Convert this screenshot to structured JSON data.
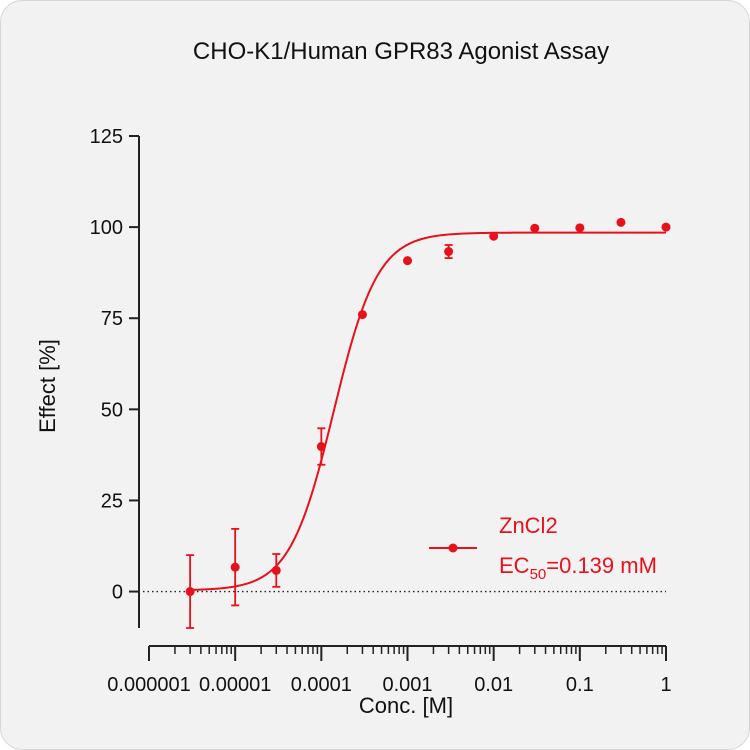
{
  "chart_data": {
    "type": "scatter",
    "title": "CHO-K1/Human GPR83 Agonist Assay",
    "xlabel": "Conc. [M]",
    "ylabel": "Effect  [%]",
    "x_scale": "log",
    "xlim": [
      1e-06,
      1
    ],
    "ylim": [
      -10,
      125
    ],
    "x_ticks": [
      {
        "value": 1e-06,
        "label": "0.000001"
      },
      {
        "value": 1e-05,
        "label": "0.00001"
      },
      {
        "value": 0.0001,
        "label": "0.0001"
      },
      {
        "value": 0.001,
        "label": "0.001"
      },
      {
        "value": 0.01,
        "label": "0.01"
      },
      {
        "value": 0.1,
        "label": "0.1"
      },
      {
        "value": 1,
        "label": "1"
      }
    ],
    "y_ticks": [
      {
        "value": 0,
        "label": "0"
      },
      {
        "value": 25,
        "label": "25"
      },
      {
        "value": 50,
        "label": "50"
      },
      {
        "value": 75,
        "label": "75"
      },
      {
        "value": 100,
        "label": "100"
      },
      {
        "value": 125,
        "label": "125"
      }
    ],
    "baseline": 0,
    "grid": false,
    "legend_position": "bottom-right",
    "series": [
      {
        "name": "ZnCl2",
        "color": "#e8111b",
        "ec50_label": "EC",
        "ec50_subscript": "50",
        "ec50_value": "=0.139 mM",
        "points": [
          {
            "x": 3e-06,
            "y": 0,
            "err": 10
          },
          {
            "x": 1e-05,
            "y": 6.7,
            "err": 10.5
          },
          {
            "x": 3e-05,
            "y": 5.8,
            "err": 4.5
          },
          {
            "x": 0.0001,
            "y": 39.8,
            "err": 5
          },
          {
            "x": 0.0003,
            "y": 76,
            "err": 0
          },
          {
            "x": 0.001,
            "y": 90.8,
            "err": 0
          },
          {
            "x": 0.003,
            "y": 93.3,
            "err": 1.8
          },
          {
            "x": 0.01,
            "y": 97.5,
            "err": 0
          },
          {
            "x": 0.03,
            "y": 99.7,
            "err": 0
          },
          {
            "x": 0.1,
            "y": 99.8,
            "err": 0
          },
          {
            "x": 0.3,
            "y": 101.3,
            "err": 0
          },
          {
            "x": 1,
            "y": 100,
            "err": 0
          }
        ],
        "fit": {
          "bottom": 0.3,
          "top": 98.5,
          "ec50": 0.000139,
          "hill": 1.7
        }
      }
    ]
  }
}
